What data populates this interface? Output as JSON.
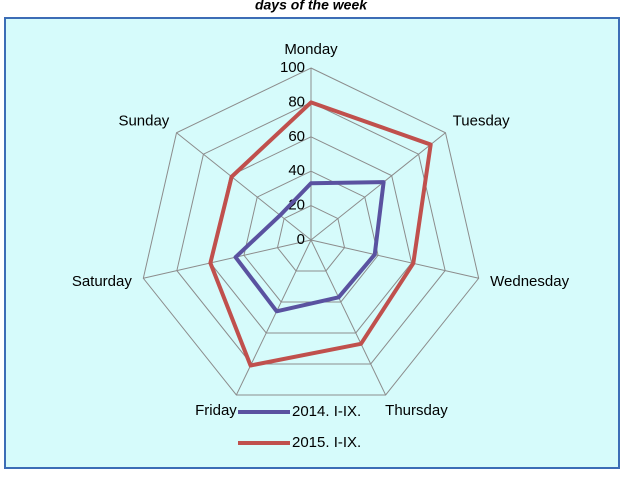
{
  "chart_data": {
    "type": "radar",
    "title": "days of the week",
    "categories": [
      "Monday",
      "Tuesday",
      "Wednesday",
      "Thursday",
      "Friday",
      "Saturday",
      "Sunday"
    ],
    "series": [
      {
        "name": "2014. I-IX.",
        "color": "#5a52a0",
        "values": [
          33,
          54,
          38,
          37,
          46,
          45,
          23
        ]
      },
      {
        "name": "2015. I-IX.",
        "color": "#c0504d",
        "values": [
          80,
          89,
          61,
          67,
          81,
          60,
          59
        ]
      }
    ],
    "ylim": [
      0,
      100
    ],
    "yticks": [
      0,
      20,
      40,
      60,
      80,
      100
    ],
    "grid": true
  }
}
